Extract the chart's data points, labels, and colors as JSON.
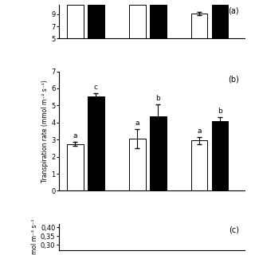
{
  "panel_a": {
    "label": "(a)",
    "bar_values": [
      10.5,
      10.5,
      10.5,
      10.5,
      9.1,
      10.5
    ],
    "bar_errors": [
      0.0,
      0.0,
      0.0,
      0.0,
      0.25,
      0.0
    ],
    "bar_colors": [
      "white",
      "black",
      "white",
      "black",
      "white",
      "black"
    ],
    "bar_edgecolors": [
      "black",
      "black",
      "black",
      "black",
      "black",
      "black"
    ],
    "ylim": [
      5,
      10.5
    ],
    "yticks": [
      5,
      7,
      9
    ],
    "ylabel": "",
    "letter_labels": [
      "",
      "",
      "",
      "",
      "",
      ""
    ]
  },
  "panel_b": {
    "label": "(b)",
    "bar_values": [
      2.75,
      5.55,
      3.05,
      4.35,
      2.95,
      4.1
    ],
    "bar_errors": [
      0.1,
      0.15,
      0.55,
      0.7,
      0.2,
      0.2
    ],
    "bar_colors": [
      "white",
      "black",
      "white",
      "black",
      "white",
      "black"
    ],
    "bar_edgecolors": [
      "black",
      "black",
      "black",
      "black",
      "black",
      "black"
    ],
    "ylim": [
      0,
      7
    ],
    "yticks": [
      0,
      1,
      2,
      3,
      4,
      5,
      6,
      7
    ],
    "ylabel": "Transpiration rate (mmol m⁻² s⁻¹)",
    "letter_labels": [
      "a",
      "c",
      "a",
      "b",
      "a",
      "b"
    ]
  },
  "panel_c": {
    "label": "(c)",
    "ylim": [
      0.27,
      0.42
    ],
    "yticks": [
      0.3,
      0.35,
      0.4
    ],
    "ytick_labels": [
      "0,30",
      "0,35",
      "0,40"
    ],
    "ylabel": "mol m⁻² s⁻¹"
  },
  "group_positions": [
    1,
    2,
    4,
    5,
    7,
    8
  ],
  "bar_width": 0.8,
  "background_color": "#ffffff",
  "figure_size": [
    3.2,
    3.2
  ],
  "dpi": 100
}
